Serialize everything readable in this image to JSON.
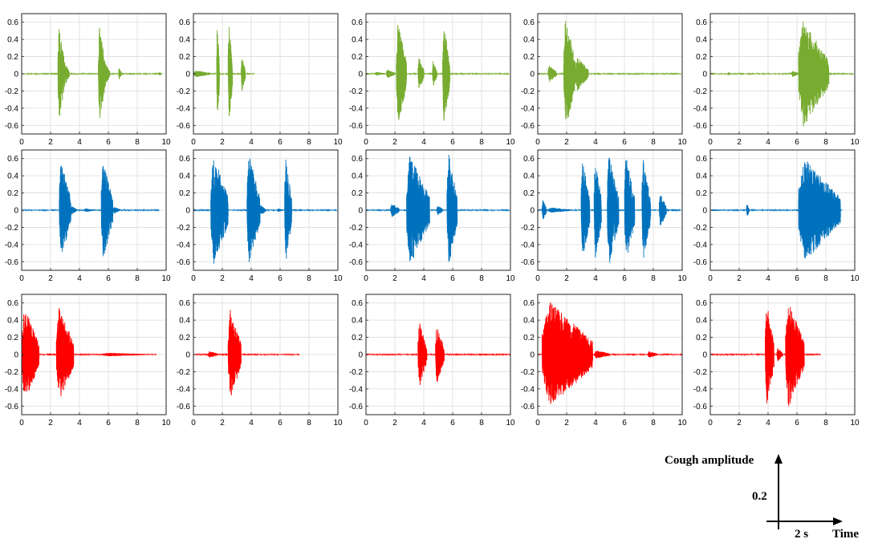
{
  "chart_data": {
    "type": "line",
    "layout": "3 rows x 5 columns of cough waveform panels",
    "xlim": [
      0,
      10
    ],
    "xticks": [
      0,
      2,
      4,
      6,
      8,
      10
    ],
    "grid": true,
    "rows": [
      {
        "color": "#77ac30",
        "ylim": [
          -0.7,
          0.7
        ],
        "yticks": [
          -0.6,
          -0.4,
          -0.2,
          0,
          0.2,
          0.4,
          0.6
        ],
        "panels": [
          {
            "duration": 9.7,
            "bursts": [
              [
                2.5,
                3.0,
                0.55
              ],
              [
                3.0,
                3.3,
                0.12
              ],
              [
                5.3,
                5.8,
                0.55
              ],
              [
                5.8,
                6.1,
                0.12
              ],
              [
                6.7,
                6.9,
                0.07
              ],
              [
                9.5,
                9.7,
                0.02
              ]
            ]
          },
          {
            "duration": 4.2,
            "bursts": [
              [
                0.0,
                1.2,
                0.04
              ],
              [
                1.6,
                1.8,
                0.62
              ],
              [
                2.4,
                2.7,
                0.6
              ],
              [
                3.3,
                3.6,
                0.2
              ]
            ]
          },
          {
            "duration": 9.9,
            "bursts": [
              [
                0.6,
                1.4,
                0.02
              ],
              [
                1.4,
                2.0,
                0.05
              ],
              [
                2.1,
                2.8,
                0.6
              ],
              [
                3.6,
                4.0,
                0.2
              ],
              [
                4.6,
                4.9,
                0.15
              ],
              [
                5.3,
                5.8,
                0.6
              ]
            ]
          },
          {
            "duration": 9.9,
            "bursts": [
              [
                0.7,
                1.3,
                0.1
              ],
              [
                1.8,
                2.6,
                0.68
              ],
              [
                2.6,
                3.5,
                0.2
              ]
            ]
          },
          {
            "duration": 9.9,
            "bursts": [
              [
                1.2,
                1.4,
                0.02
              ],
              [
                5.6,
                6.1,
                0.04
              ],
              [
                6.1,
                8.2,
                0.63
              ]
            ]
          }
        ]
      },
      {
        "color": "#0072bd",
        "ylim": [
          -0.7,
          0.7
        ],
        "yticks": [
          -0.6,
          -0.4,
          -0.2,
          0,
          0.2,
          0.4,
          0.6
        ],
        "panels": [
          {
            "duration": 9.5,
            "bursts": [
              [
                2.6,
                3.4,
                0.57
              ],
              [
                3.4,
                3.8,
                0.05
              ],
              [
                4.3,
                5.1,
                0.02
              ],
              [
                5.5,
                6.3,
                0.57
              ],
              [
                6.3,
                6.8,
                0.04
              ]
            ]
          },
          {
            "duration": 9.9,
            "bursts": [
              [
                1.2,
                2.4,
                0.65
              ],
              [
                3.7,
                4.6,
                0.65
              ],
              [
                4.6,
                5.0,
                0.06
              ],
              [
                5.8,
                6.2,
                0.02
              ],
              [
                6.3,
                6.8,
                0.62
              ]
            ]
          },
          {
            "duration": 9.9,
            "bursts": [
              [
                1.7,
                2.3,
                0.08
              ],
              [
                2.8,
                4.4,
                0.65
              ],
              [
                4.9,
                5.3,
                0.06
              ],
              [
                5.6,
                6.3,
                0.68
              ]
            ]
          },
          {
            "duration": 9.9,
            "bursts": [
              [
                0.3,
                0.6,
                0.12
              ],
              [
                0.7,
                2.3,
                0.03
              ],
              [
                3.0,
                3.6,
                0.6
              ],
              [
                3.9,
                4.4,
                0.62
              ],
              [
                4.8,
                5.6,
                0.65
              ],
              [
                6.0,
                6.7,
                0.65
              ],
              [
                7.2,
                7.8,
                0.6
              ],
              [
                8.4,
                8.9,
                0.2
              ]
            ]
          },
          {
            "duration": 9.1,
            "bursts": [
              [
                0.0,
                1.2,
                0.01
              ],
              [
                2.5,
                2.7,
                0.08
              ],
              [
                6.1,
                9.0,
                0.6
              ]
            ]
          }
        ]
      },
      {
        "color": "#ff0000",
        "ylim": [
          -0.7,
          0.7
        ],
        "yticks": [
          -0.6,
          -0.4,
          -0.2,
          0,
          0.2,
          0.4,
          0.6
        ],
        "panels": [
          {
            "duration": 9.3,
            "bursts": [
              [
                0.0,
                1.2,
                0.55
              ],
              [
                2.4,
                3.6,
                0.55
              ],
              [
                5.5,
                8.8,
                0.02
              ]
            ]
          },
          {
            "duration": 7.3,
            "bursts": [
              [
                1.0,
                1.7,
                0.04
              ],
              [
                2.4,
                3.3,
                0.53
              ]
            ]
          },
          {
            "duration": 10.0,
            "bursts": [
              [
                3.6,
                4.2,
                0.38
              ],
              [
                4.8,
                5.4,
                0.35
              ]
            ]
          },
          {
            "duration": 10.0,
            "bursts": [
              [
                0.3,
                3.8,
                0.62
              ],
              [
                3.9,
                5.0,
                0.05
              ],
              [
                7.6,
                8.3,
                0.04
              ]
            ]
          },
          {
            "duration": 7.6,
            "bursts": [
              [
                3.8,
                4.4,
                0.62
              ],
              [
                4.6,
                5.0,
                0.08
              ],
              [
                5.2,
                6.5,
                0.62
              ]
            ]
          }
        ]
      }
    ],
    "scale_legend": {
      "y_label": "Cough amplitude",
      "y_value": "0.2",
      "x_value": "2 s",
      "x_label": "Time"
    }
  }
}
